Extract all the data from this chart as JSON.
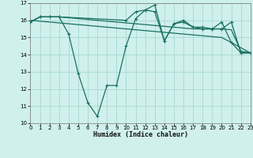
{
  "xlabel": "Humidex (Indice chaleur)",
  "background_color": "#cff0ec",
  "grid_color": "#a8d8d2",
  "line_color": "#1a7060",
  "xlim": [
    0,
    23
  ],
  "ylim": [
    10,
    17
  ],
  "yticks": [
    10,
    11,
    12,
    13,
    14,
    15,
    16,
    17
  ],
  "xticks": [
    0,
    1,
    2,
    3,
    4,
    5,
    6,
    7,
    8,
    9,
    10,
    11,
    12,
    13,
    14,
    15,
    16,
    17,
    18,
    19,
    20,
    21,
    22,
    23
  ],
  "line1_x": [
    0,
    1,
    2,
    3,
    4,
    5,
    6,
    7,
    8,
    9,
    10,
    11,
    12,
    13,
    14,
    15,
    16,
    17,
    18,
    19,
    20,
    21,
    22,
    23
  ],
  "line1_y": [
    15.9,
    16.2,
    16.2,
    16.2,
    15.2,
    12.9,
    11.2,
    10.4,
    12.2,
    12.2,
    14.5,
    16.1,
    16.6,
    16.5,
    14.8,
    15.8,
    15.9,
    15.6,
    15.5,
    15.5,
    15.9,
    14.7,
    14.1,
    14.1
  ],
  "line2_x": [
    0,
    1,
    2,
    3,
    4,
    5,
    6,
    7,
    8,
    9,
    10,
    11,
    12,
    13,
    14,
    15,
    16,
    17,
    18,
    19,
    20,
    21,
    22,
    23
  ],
  "line2_y": [
    16.0,
    15.95,
    15.9,
    15.85,
    15.8,
    15.75,
    15.7,
    15.65,
    15.6,
    15.55,
    15.5,
    15.45,
    15.4,
    15.35,
    15.3,
    15.25,
    15.2,
    15.15,
    15.1,
    15.05,
    15.0,
    14.7,
    14.4,
    14.1
  ],
  "line3_x": [
    0,
    1,
    2,
    3,
    4,
    5,
    6,
    7,
    8,
    9,
    10,
    11,
    12,
    13,
    14,
    15,
    16,
    17,
    18,
    19,
    20,
    21,
    22,
    23
  ],
  "line3_y": [
    15.9,
    16.2,
    16.2,
    16.2,
    16.15,
    16.1,
    16.05,
    16.0,
    15.95,
    15.9,
    15.85,
    15.8,
    15.75,
    15.7,
    15.65,
    15.6,
    15.55,
    15.5,
    15.5,
    15.5,
    15.5,
    15.45,
    14.2,
    14.1
  ],
  "line4_x": [
    0,
    1,
    2,
    3,
    10,
    11,
    12,
    13,
    14,
    15,
    16,
    17,
    18,
    19,
    20,
    21,
    22,
    23
  ],
  "line4_y": [
    15.9,
    16.2,
    16.2,
    16.2,
    16.0,
    16.5,
    16.6,
    16.9,
    14.8,
    15.8,
    16.0,
    15.6,
    15.6,
    15.5,
    15.5,
    15.9,
    14.1,
    14.1
  ]
}
